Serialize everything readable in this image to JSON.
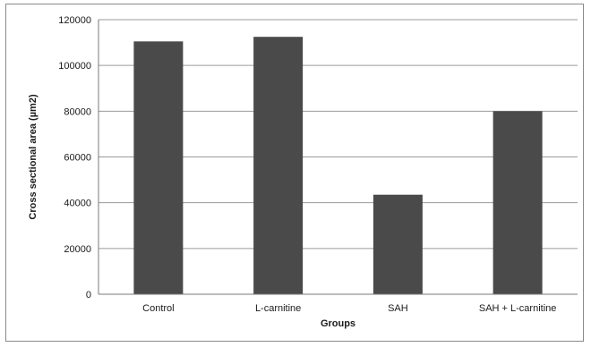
{
  "chart_data": {
    "type": "bar",
    "title": "",
    "xlabel": "Groups",
    "ylabel": "Cross sectional area (µm2)",
    "categories": [
      "Control",
      "L-carnitine",
      "SAH",
      "SAH + L-carnitine"
    ],
    "series": [
      {
        "values": [
          110500,
          112500,
          43500,
          80000
        ]
      }
    ],
    "ylim": [
      0,
      120000
    ],
    "yticks": [
      "0",
      "20000",
      "40000",
      "60000",
      "80000",
      "100000",
      "120000"
    ],
    "grid": true,
    "legend": "none",
    "colors": {
      "bar": "#4a4a4a",
      "grid": "#9a9a9a",
      "axis": "#7a7a7a"
    }
  }
}
